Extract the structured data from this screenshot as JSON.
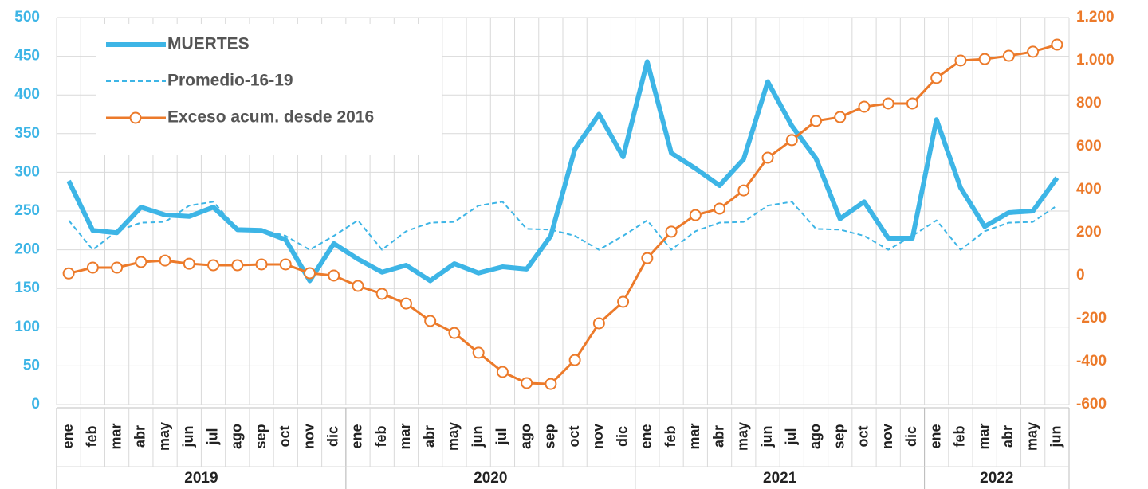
{
  "chart_data": {
    "type": "line",
    "years": [
      {
        "label": "2019",
        "months": [
          "ene",
          "feb",
          "mar",
          "abr",
          "may",
          "jun",
          "jul",
          "ago",
          "sep",
          "oct",
          "nov",
          "dic"
        ]
      },
      {
        "label": "2020",
        "months": [
          "ene",
          "feb",
          "mar",
          "abr",
          "may",
          "jun",
          "jul",
          "ago",
          "sep",
          "oct",
          "nov",
          "dic"
        ]
      },
      {
        "label": "2021",
        "months": [
          "ene",
          "feb",
          "mar",
          "abr",
          "may",
          "jun",
          "jul",
          "ago",
          "sep",
          "oct",
          "nov",
          "dic"
        ]
      },
      {
        "label": "2022",
        "months": [
          "ene",
          "feb",
          "mar",
          "abr",
          "may",
          "jun"
        ]
      }
    ],
    "series": [
      {
        "name": "MUERTES",
        "color": "#3db5e6",
        "style": "thick",
        "values": [
          289,
          225,
          222,
          255,
          245,
          243,
          255,
          226,
          225,
          213,
          160,
          208,
          188,
          171,
          180,
          160,
          182,
          170,
          178,
          175,
          218,
          330,
          375,
          320,
          443,
          325,
          305,
          283,
          317,
          417,
          360,
          318,
          240,
          262,
          215,
          215,
          368,
          280,
          230,
          248,
          250,
          293
        ]
      },
      {
        "name": "Promedio-16-19",
        "color": "#3db5e6",
        "style": "dashed",
        "values": [
          238,
          200,
          224,
          235,
          236,
          257,
          262,
          227,
          226,
          218,
          200,
          218,
          238,
          200,
          224,
          235,
          236,
          257,
          262,
          227,
          226,
          218,
          200,
          218,
          238,
          200,
          224,
          235,
          236,
          257,
          262,
          227,
          226,
          218,
          200,
          218,
          238,
          200,
          224,
          235,
          236,
          257
        ]
      },
      {
        "name": "Exceso acum. desde 2016",
        "color": "#ec7a2a",
        "style": "markers",
        "axis": "y2",
        "values": [
          10,
          37,
          37,
          63,
          70,
          55,
          48,
          48,
          52,
          52,
          11,
          0,
          -48,
          -85,
          -130,
          -211,
          -267,
          -359,
          -448,
          -500,
          -504,
          -393,
          -222,
          -122,
          81,
          204,
          281,
          311,
          396,
          548,
          630,
          719,
          737,
          785,
          800,
          800,
          919,
          1000,
          1007,
          1022,
          1041,
          1074
        ]
      }
    ],
    "ylim": [
      0,
      500
    ],
    "yticks": [
      0,
      50,
      100,
      150,
      200,
      250,
      300,
      350,
      400,
      450,
      500
    ],
    "y2lim": [
      -600,
      1200
    ],
    "y2ticks": [
      -600,
      -400,
      -200,
      0,
      200,
      400,
      600,
      800,
      {
        "value": 1000,
        "label": "1.000"
      },
      {
        "value": 1200,
        "label": "1.200"
      }
    ],
    "grid": true,
    "legend": "upper left"
  }
}
